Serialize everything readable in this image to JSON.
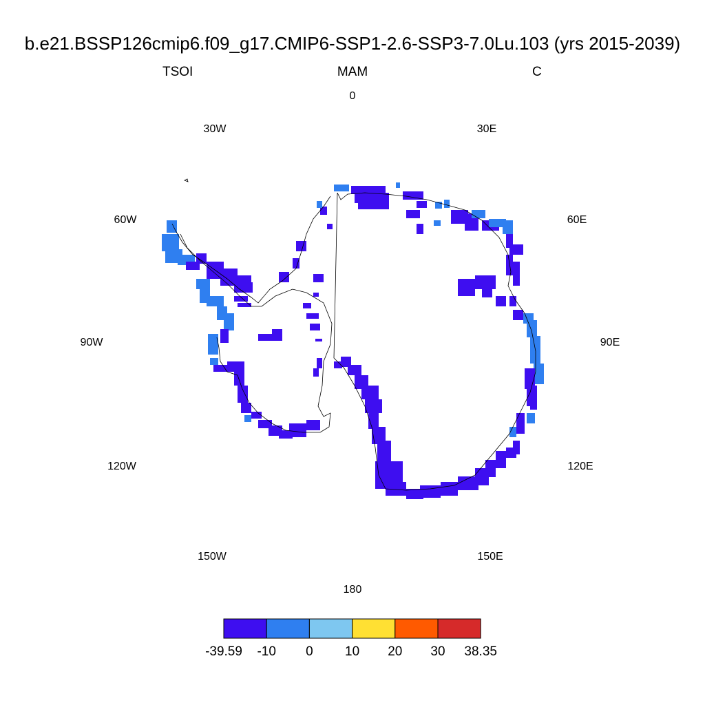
{
  "title": "b.e21.BSSP126cmip6.f09_g17.CMIP6-SSP1-2.6-SSP3-7.0Lu.103 (yrs 2015-2039)",
  "left_string": "TSOI",
  "center_string": "MAM",
  "right_string": "C",
  "longitude_labels": [
    "0",
    "30E",
    "60E",
    "90E",
    "120E",
    "150E",
    "180",
    "150W",
    "120W",
    "90W",
    "60W",
    "30W"
  ],
  "colorbar": {
    "colors": [
      "#3e0ef0",
      "#2f7ff0",
      "#7ec7f0",
      "#ffe033",
      "#ff5a00",
      "#d62a2a"
    ],
    "labels": [
      "-39.59",
      "-10",
      "0",
      "10",
      "20",
      "30",
      "38.35"
    ]
  },
  "map": {
    "projection": "south-polar-stereographic",
    "land_outline_color": "#000000"
  }
}
